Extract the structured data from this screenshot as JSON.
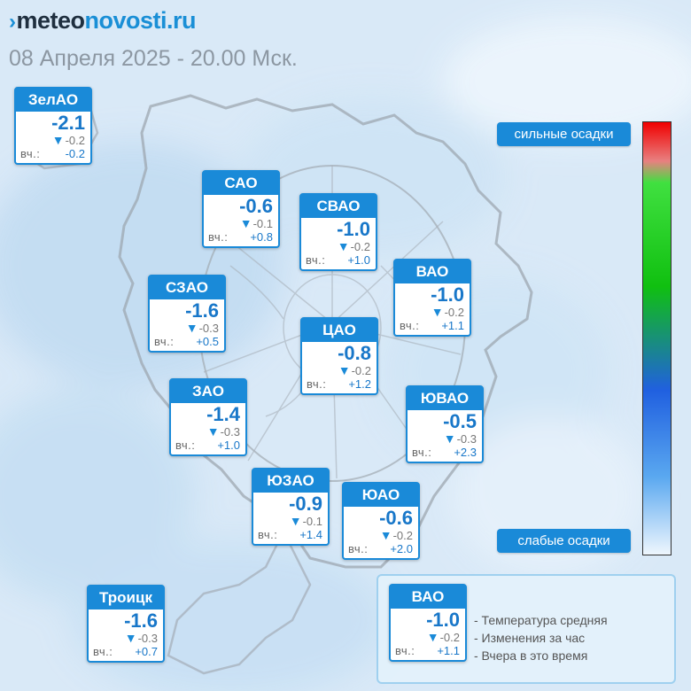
{
  "header": {
    "logo_part1": "meteo",
    "logo_part2": "novosti.ru",
    "subtitle": "08 Апреля 2025 - 20.00 Мск."
  },
  "districts": [
    {
      "name": "ЗелАО",
      "temp": "-2.1",
      "change": "-0.2",
      "yday_label": "вч.:",
      "yday": "-0.2"
    },
    {
      "name": "САО",
      "temp": "-0.6",
      "change": "-0.1",
      "yday_label": "вч.:",
      "yday": "+0.8"
    },
    {
      "name": "СВАО",
      "temp": "-1.0",
      "change": "-0.2",
      "yday_label": "вч.:",
      "yday": "+1.0"
    },
    {
      "name": "ВАО",
      "temp": "-1.0",
      "change": "-0.2",
      "yday_label": "вч.:",
      "yday": "+1.1"
    },
    {
      "name": "СЗАО",
      "temp": "-1.6",
      "change": "-0.3",
      "yday_label": "вч.:",
      "yday": "+0.5"
    },
    {
      "name": "ЦАО",
      "temp": "-0.8",
      "change": "-0.2",
      "yday_label": "вч.:",
      "yday": "+1.2"
    },
    {
      "name": "ЗАО",
      "temp": "-1.4",
      "change": "-0.3",
      "yday_label": "вч.:",
      "yday": "+1.0"
    },
    {
      "name": "ЮВАО",
      "temp": "-0.5",
      "change": "-0.3",
      "yday_label": "вч.:",
      "yday": "+2.3"
    },
    {
      "name": "ЮЗАО",
      "temp": "-0.9",
      "change": "-0.1",
      "yday_label": "вч.:",
      "yday": "+1.4"
    },
    {
      "name": "ЮАО",
      "temp": "-0.6",
      "change": "-0.2",
      "yday_label": "вч.:",
      "yday": "+2.0"
    },
    {
      "name": "Троицк",
      "temp": "-1.6",
      "change": "-0.3",
      "yday_label": "вч.:",
      "yday": "+0.7"
    }
  ],
  "scale": {
    "top_label": "сильные осадки",
    "bottom_label": "слабые осадки",
    "colors": {
      "heavy": "#f00000",
      "medium": "#10c010",
      "light": "#eef6fd"
    }
  },
  "legend": {
    "sample": {
      "name": "ВАО",
      "temp": "-1.0",
      "change": "-0.2",
      "yday_label": "вч.:",
      "yday": "+1.1"
    },
    "lines": [
      "- Температура средняя",
      "- Изменения за час",
      "- Вчера в это время"
    ]
  },
  "colors": {
    "accent": "#1a8ad8",
    "temperature": "#1877c9",
    "background": "#dbeaf7"
  }
}
